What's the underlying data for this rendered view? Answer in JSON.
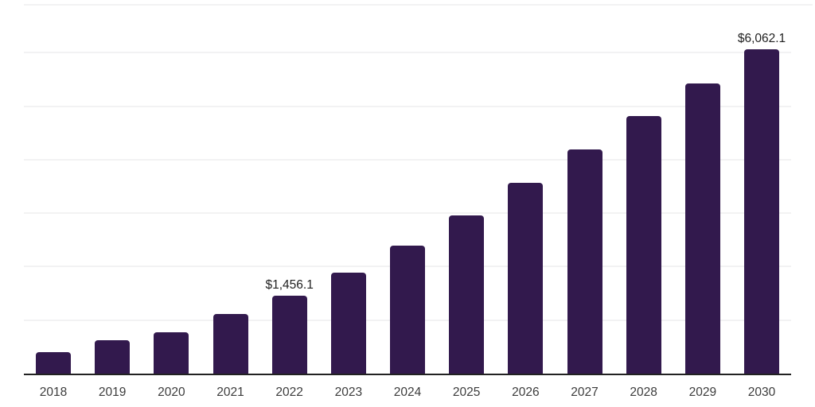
{
  "chart_data": {
    "type": "bar",
    "title": "",
    "xlabel": "",
    "ylabel": "",
    "categories": [
      "2018",
      "2019",
      "2020",
      "2021",
      "2022",
      "2023",
      "2024",
      "2025",
      "2026",
      "2027",
      "2028",
      "2029",
      "2030"
    ],
    "values": [
      400,
      625,
      775,
      1120,
      1456.1,
      1880,
      2390,
      2950,
      3560,
      4190,
      4810,
      5420,
      6062.1
    ],
    "value_prefix": "$",
    "labeled_points": [
      {
        "category": "2022",
        "label": "$1,456.1"
      },
      {
        "category": "2030",
        "label": "$6,062.1"
      }
    ],
    "ylim": [
      0,
      7000
    ],
    "gridline_step": 1000,
    "grid": true,
    "y_axis_labels_visible": false,
    "legend_position": "none"
  },
  "colors": {
    "bar": "#32194d",
    "axis": "#222222",
    "gridline": "#f2f2f3",
    "tick_label": "#3c3c3c",
    "value_label": "#1f1f1f",
    "background": "#ffffff"
  }
}
